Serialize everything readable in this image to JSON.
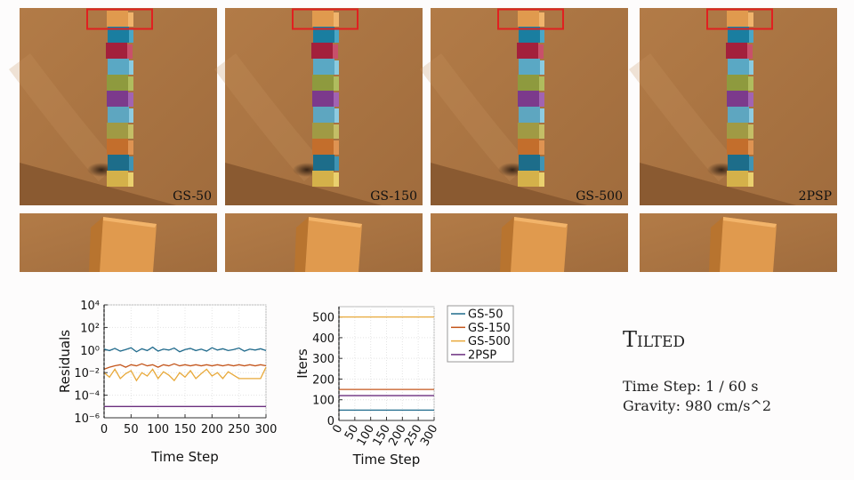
{
  "panels": [
    {
      "label": "GS-50"
    },
    {
      "label": "GS-150"
    },
    {
      "label": "GS-500"
    },
    {
      "label": "2PSP"
    }
  ],
  "info": {
    "title": "Tilted",
    "lines": [
      "Time Step: 1 / 60 s",
      "Gravity: 980 cm/s^2"
    ]
  },
  "chart_data": [
    {
      "type": "line",
      "xlabel": "Time Step",
      "ylabel": "Residuals",
      "log_y": true,
      "grid": true,
      "marker_x": 0,
      "xlim": [
        0,
        300
      ],
      "xticks": [
        0,
        50,
        100,
        150,
        200,
        250,
        300
      ],
      "ylim": [
        1e-06,
        10000
      ],
      "yticks": [
        {
          "value": 1e-06,
          "label": "10⁻⁶"
        },
        {
          "value": 0.0001,
          "label": "10⁻⁴"
        },
        {
          "value": 0.01,
          "label": "10⁻²"
        },
        {
          "value": 1,
          "label": "10⁰"
        },
        {
          "value": 100,
          "label": "10²"
        },
        {
          "value": 10000,
          "label": "10⁴"
        }
      ],
      "x": [
        0,
        10,
        20,
        30,
        40,
        50,
        60,
        70,
        80,
        90,
        100,
        110,
        120,
        130,
        140,
        150,
        160,
        170,
        180,
        190,
        200,
        210,
        220,
        230,
        240,
        250,
        260,
        270,
        280,
        290,
        300
      ],
      "series": [
        {
          "color": "#1f6a8c",
          "values": [
            1.2,
            0.9,
            1.4,
            0.8,
            1.1,
            1.6,
            0.7,
            1.3,
            0.9,
            1.8,
            0.8,
            1.2,
            1.0,
            1.5,
            0.7,
            1.1,
            1.4,
            0.9,
            1.2,
            0.8,
            1.6,
            1.0,
            1.3,
            0.9,
            1.1,
            1.5,
            0.8,
            1.2,
            1.0,
            1.3,
            0.9
          ]
        },
        {
          "color": "#c4561c",
          "values": [
            0.02,
            0.03,
            0.04,
            0.05,
            0.03,
            0.05,
            0.04,
            0.06,
            0.04,
            0.05,
            0.03,
            0.05,
            0.04,
            0.06,
            0.04,
            0.05,
            0.04,
            0.05,
            0.04,
            0.05,
            0.04,
            0.05,
            0.04,
            0.05,
            0.04,
            0.05,
            0.04,
            0.05,
            0.04,
            0.05,
            0.04
          ]
        },
        {
          "color": "#e8a93a",
          "values": [
            0.01,
            0.004,
            0.02,
            0.003,
            0.008,
            0.015,
            0.002,
            0.01,
            0.005,
            0.02,
            0.003,
            0.012,
            0.006,
            0.002,
            0.01,
            0.004,
            0.015,
            0.003,
            0.008,
            0.02,
            0.005,
            0.01,
            0.003,
            0.012,
            0.006,
            0.003,
            0.003,
            0.003,
            0.003,
            0.003,
            0.03
          ]
        },
        {
          "color": "#6b2f7f",
          "values": [
            1e-05,
            1e-05,
            1e-05,
            1e-05,
            1e-05,
            1e-05,
            1e-05,
            1e-05,
            1e-05,
            1e-05,
            1e-05,
            1e-05,
            1e-05,
            1e-05,
            1e-05,
            1e-05,
            1e-05,
            1e-05,
            1e-05,
            1e-05,
            1e-05,
            1e-05,
            1e-05,
            1e-05,
            1e-05,
            1e-05,
            1e-05,
            1e-05,
            1e-05,
            1e-05,
            1e-05
          ]
        }
      ]
    },
    {
      "type": "line",
      "xlabel": "Time Step",
      "ylabel": "Iters",
      "grid": true,
      "marker_x": 0,
      "legend": "outside-right",
      "xlim": [
        0,
        300
      ],
      "xticks": [
        0,
        50,
        100,
        150,
        200,
        250,
        300
      ],
      "ylim": [
        0,
        550
      ],
      "yticks": [
        0,
        100,
        200,
        300,
        400,
        500
      ],
      "x": [
        0,
        300
      ],
      "series": [
        {
          "name": "GS-50",
          "color": "#1f6a8c",
          "values": [
            50,
            50
          ]
        },
        {
          "name": "GS-150",
          "color": "#c4561c",
          "values": [
            150,
            150
          ]
        },
        {
          "name": "GS-500",
          "color": "#e8a93a",
          "values": [
            500,
            500
          ]
        },
        {
          "name": "2PSP",
          "color": "#6b2f7f",
          "values": [
            120,
            120
          ]
        }
      ]
    }
  ]
}
